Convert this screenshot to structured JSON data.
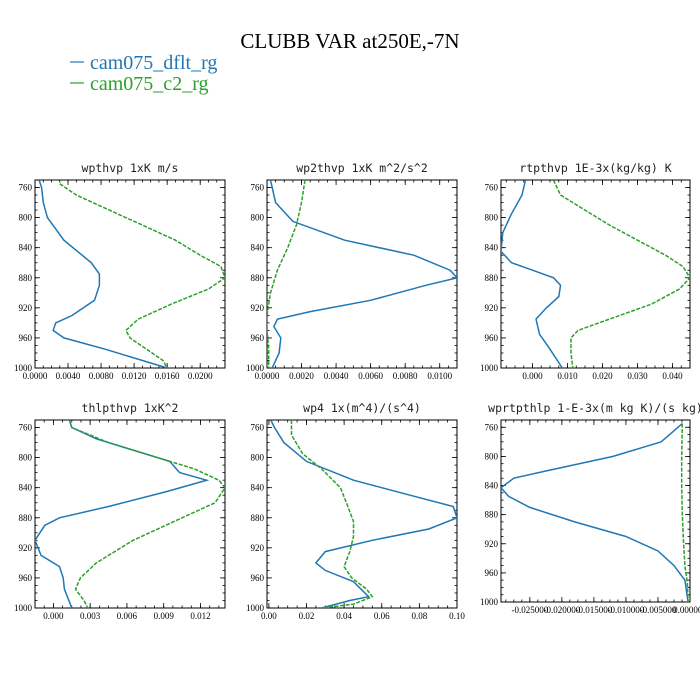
{
  "figure": {
    "title": "CLUBB VAR at250E,-7N",
    "colors": {
      "cam075_dflt_rg": "#1f77b4",
      "cam075_c2_rg": "#2ca02c"
    },
    "legend": [
      {
        "label": "cam075_dflt_rg",
        "color": "#1f77b4",
        "dashed": false
      },
      {
        "label": "cam075_c2_rg",
        "color": "#2ca02c",
        "dashed": true
      }
    ]
  },
  "chart_data": [
    {
      "type": "line",
      "title": "wpthvp   1xK m/s",
      "xlim": [
        0,
        0.023
      ],
      "ylim": [
        1000,
        750
      ],
      "xticks": [
        0,
        0.004,
        0.008,
        0.012,
        0.016,
        0.02
      ],
      "xticklabels": [
        "0.0000",
        "0.0040",
        "0.0080",
        "0.0120",
        "0.0160",
        "0.0200"
      ],
      "yticks": [
        760,
        800,
        840,
        880,
        920,
        960,
        1000
      ],
      "series": [
        {
          "name": "cam075_dflt_rg",
          "x": [
            0.0005,
            0.0008,
            0.001,
            0.0015,
            0.0035,
            0.0068,
            0.0078,
            0.0078,
            0.0072,
            0.0045,
            0.0025,
            0.0022,
            0.0035,
            0.0085,
            0.016
          ],
          "y": [
            750,
            760,
            780,
            800,
            830,
            860,
            875,
            890,
            910,
            930,
            940,
            950,
            960,
            975,
            1000
          ]
        },
        {
          "name": "cam075_c2_rg",
          "x": [
            0.003,
            0.005,
            0.009,
            0.013,
            0.017,
            0.02,
            0.0225,
            0.023,
            0.021,
            0.0165,
            0.0125,
            0.011,
            0.0115,
            0.0135,
            0.0155,
            0.016
          ],
          "y": [
            755,
            770,
            790,
            810,
            830,
            850,
            865,
            880,
            895,
            915,
            935,
            950,
            960,
            975,
            990,
            1000
          ]
        }
      ]
    },
    {
      "type": "line",
      "title": "wp2thvp   1xK m^2/s^2",
      "xlim": [
        0,
        0.011
      ],
      "ylim": [
        1000,
        750
      ],
      "xticks": [
        0,
        0.002,
        0.004,
        0.006,
        0.008,
        0.01
      ],
      "xticklabels": [
        "0.0000",
        "0.0020",
        "0.0040",
        "0.0060",
        "0.0080",
        "0.0100"
      ],
      "yticks": [
        760,
        800,
        840,
        880,
        920,
        960,
        1000
      ],
      "series": [
        {
          "name": "cam075_dflt_rg",
          "x": [
            0.0002,
            0.0005,
            0.0015,
            0.0045,
            0.0085,
            0.0106,
            0.011,
            0.0092,
            0.006,
            0.0025,
            0.0006,
            0.0004,
            0.0008,
            0.0007,
            0.0003
          ],
          "y": [
            750,
            780,
            805,
            830,
            850,
            870,
            880,
            890,
            910,
            925,
            935,
            945,
            960,
            980,
            1000
          ]
        },
        {
          "name": "cam075_c2_rg",
          "x": [
            0.0022,
            0.002,
            0.0017,
            0.0012,
            0.0006,
            0.0002,
            0.0,
            0.0,
            0.0001,
            0.0001
          ],
          "y": [
            750,
            780,
            810,
            840,
            870,
            900,
            930,
            950,
            975,
            1000
          ]
        }
      ]
    },
    {
      "type": "line",
      "title": "rtpthvp   1E-3x(kg/kg) K",
      "xlim": [
        -0.009,
        0.045
      ],
      "ylim": [
        1000,
        750
      ],
      "xticks": [
        0,
        0.01,
        0.02,
        0.03,
        0.04
      ],
      "xticklabels": [
        "0.000",
        "0.010",
        "0.020",
        "0.030",
        "0.040"
      ],
      "yticks": [
        760,
        800,
        840,
        880,
        920,
        960,
        1000
      ],
      "series": [
        {
          "name": "cam075_dflt_rg",
          "x": [
            -0.002,
            -0.003,
            -0.006,
            -0.0085,
            -0.009,
            -0.006,
            0.0,
            0.006,
            0.008,
            0.0075,
            0.004,
            0.001,
            0.002,
            0.005,
            0.0085
          ],
          "y": [
            750,
            770,
            795,
            820,
            845,
            860,
            870,
            880,
            890,
            905,
            920,
            935,
            955,
            975,
            1000
          ]
        },
        {
          "name": "cam075_c2_rg",
          "x": [
            0.006,
            0.008,
            0.015,
            0.022,
            0.03,
            0.038,
            0.043,
            0.045,
            0.042,
            0.034,
            0.022,
            0.013,
            0.011,
            0.011,
            0.0115
          ],
          "y": [
            750,
            770,
            790,
            810,
            830,
            850,
            865,
            880,
            895,
            915,
            935,
            950,
            960,
            980,
            1000
          ]
        }
      ]
    },
    {
      "type": "line",
      "title": "thlpthvp   1xK^2",
      "xlim": [
        -0.0015,
        0.014
      ],
      "ylim": [
        1000,
        750
      ],
      "xticks": [
        0,
        0.003,
        0.006,
        0.009,
        0.012
      ],
      "xticklabels": [
        "0.000",
        "0.003",
        "0.006",
        "0.009",
        "0.012"
      ],
      "yticks": [
        760,
        800,
        840,
        880,
        920,
        960,
        1000
      ],
      "series": [
        {
          "name": "cam075_dflt_rg",
          "x": [
            0.0013,
            0.0015,
            0.0035,
            0.0065,
            0.0095,
            0.0103,
            0.0125,
            0.0093,
            0.0045,
            0.0005,
            -0.0007,
            -0.0015,
            -0.001,
            0.0005,
            0.0008,
            0.0009,
            0.0015
          ],
          "y": [
            750,
            760,
            775,
            790,
            805,
            820,
            830,
            845,
            865,
            880,
            890,
            910,
            930,
            945,
            960,
            975,
            1000
          ]
        },
        {
          "name": "cam075_c2_rg",
          "x": [
            0.0013,
            0.0015,
            0.0045,
            0.0085,
            0.0115,
            0.0135,
            0.014,
            0.0132,
            0.0105,
            0.0065,
            0.0035,
            0.0022,
            0.0018,
            0.0025,
            0.0028
          ],
          "y": [
            750,
            760,
            780,
            800,
            815,
            830,
            840,
            860,
            880,
            910,
            940,
            960,
            975,
            990,
            1000
          ]
        }
      ]
    },
    {
      "type": "line",
      "title": "wp4   1x(m^4)/(s^4)",
      "xlim": [
        -0.001,
        0.1
      ],
      "ylim": [
        1000,
        750
      ],
      "xticks": [
        0,
        0.02,
        0.04,
        0.06,
        0.08,
        0.1
      ],
      "xticklabels": [
        "0.00",
        "0.02",
        "0.04",
        "0.06",
        "0.08",
        "0.10"
      ],
      "yticks": [
        760,
        800,
        840,
        880,
        920,
        960,
        1000
      ],
      "series": [
        {
          "name": "cam075_dflt_rg",
          "x": [
            0.001,
            0.003,
            0.008,
            0.02,
            0.045,
            0.075,
            0.098,
            0.1,
            0.085,
            0.055,
            0.03,
            0.025,
            0.03,
            0.045,
            0.053,
            0.043,
            0.028
          ],
          "y": [
            750,
            760,
            780,
            805,
            830,
            850,
            865,
            880,
            895,
            910,
            925,
            940,
            950,
            965,
            985,
            990,
            1000
          ]
        },
        {
          "name": "cam075_c2_rg",
          "x": [
            0.012,
            0.012,
            0.018,
            0.028,
            0.038,
            0.042,
            0.045,
            0.045,
            0.043,
            0.04,
            0.044,
            0.052,
            0.055,
            0.045,
            0.028
          ],
          "y": [
            750,
            770,
            795,
            815,
            840,
            865,
            885,
            905,
            925,
            945,
            960,
            975,
            985,
            995,
            1000
          ]
        }
      ]
    },
    {
      "type": "line",
      "title": "wprtpthlp   1-E-3x(m kg K)/(s kg)",
      "xlim": [
        -0.0295,
        0.0
      ],
      "ylim": [
        1000,
        750
      ],
      "xticks": [
        -0.025,
        -0.02,
        -0.015,
        -0.01,
        -0.005,
        0
      ],
      "xticklabels": [
        "-0.025000",
        "-0.020000",
        "-0.015000",
        "-0.010000",
        "-0.005000",
        "0.000000"
      ],
      "yticks": [
        760,
        800,
        840,
        880,
        920,
        960,
        1000
      ],
      "series": [
        {
          "name": "cam075_dflt_rg",
          "x": [
            -0.0012,
            -0.0045,
            -0.012,
            -0.0225,
            -0.0275,
            -0.0295,
            -0.0283,
            -0.025,
            -0.018,
            -0.01,
            -0.005,
            -0.0025,
            -0.0008,
            -0.0003
          ],
          "y": [
            755,
            780,
            800,
            820,
            830,
            843,
            855,
            870,
            890,
            910,
            930,
            950,
            970,
            1000
          ]
        },
        {
          "name": "cam075_c2_rg",
          "x": [
            -0.0012,
            -0.0013,
            -0.0013,
            -0.0012,
            -0.001,
            -0.0008,
            -0.0004,
            -0.0003
          ],
          "y": [
            755,
            800,
            840,
            880,
            920,
            950,
            975,
            1000
          ]
        }
      ]
    }
  ]
}
